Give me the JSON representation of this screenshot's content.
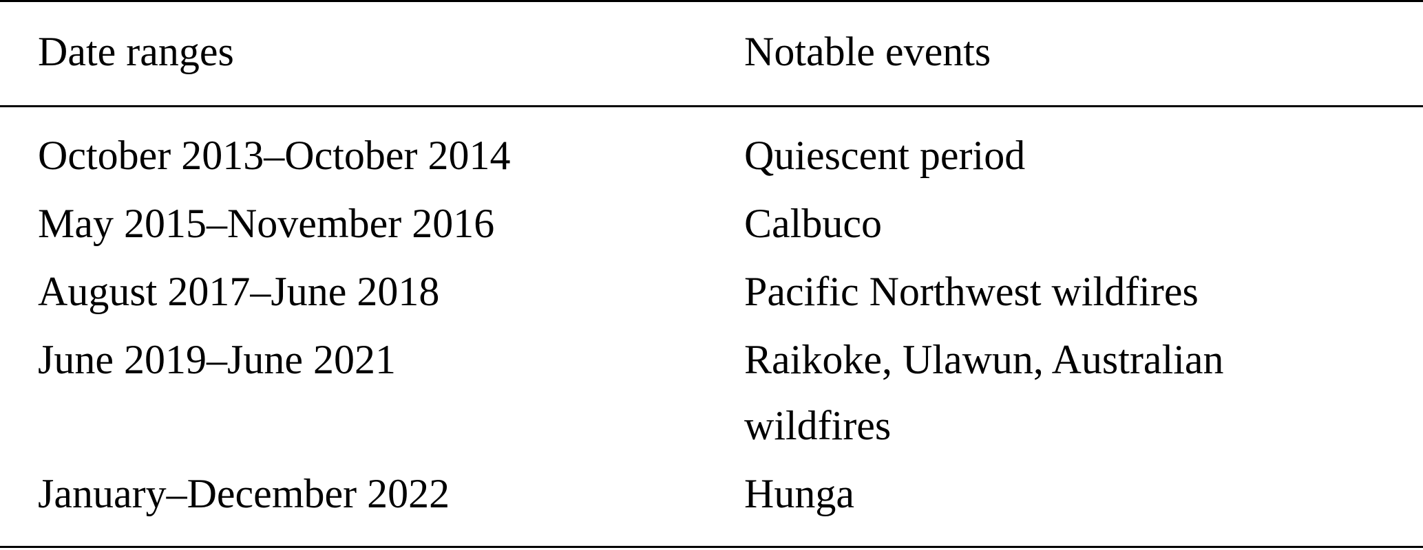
{
  "table": {
    "headers": [
      "Date ranges",
      "Notable events"
    ],
    "rows": [
      [
        "October 2013–October 2014",
        "Quiescent period"
      ],
      [
        "May 2015–November 2016",
        "Calbuco"
      ],
      [
        "August 2017–June 2018",
        "Pacific Northwest wildfires"
      ],
      [
        "June 2019–June 2021",
        "Raikoke, Ulawun, Australian"
      ],
      [
        "",
        "wildfires"
      ],
      [
        "January–December 2022",
        "Hunga"
      ]
    ]
  }
}
